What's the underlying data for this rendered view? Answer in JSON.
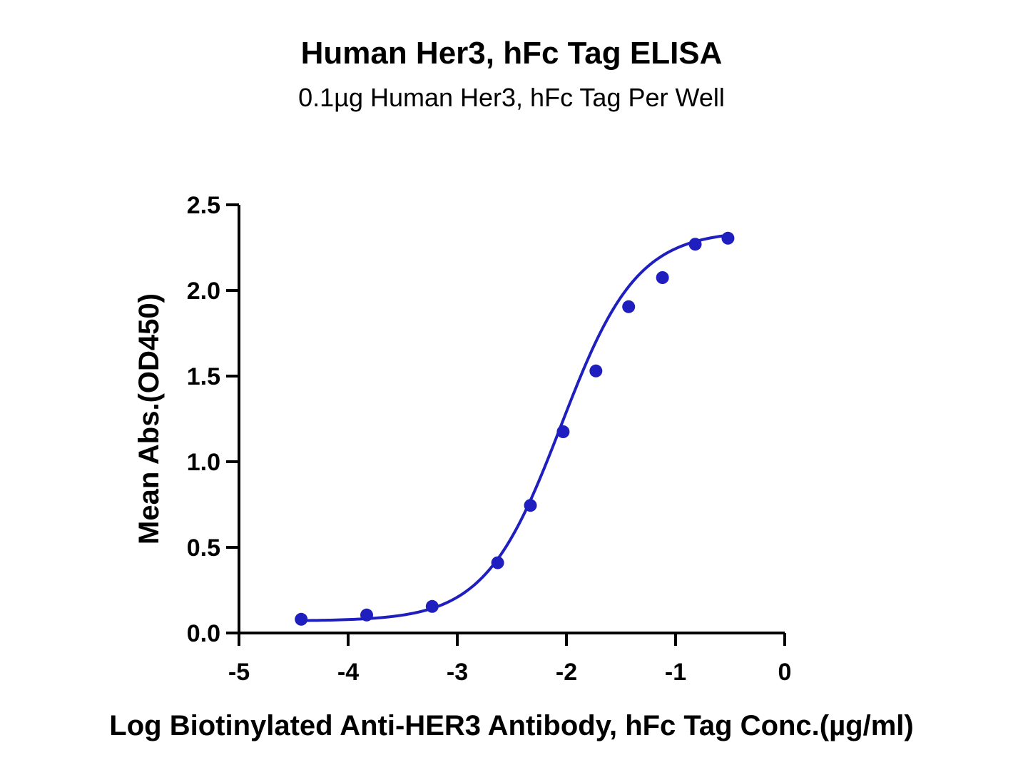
{
  "chart_data": {
    "type": "scatter",
    "title": "Human Her3, hFc Tag ELISA",
    "subtitle": "0.1µg Human Her3, hFc Tag Per Well",
    "xlabel": "Log Biotinylated Anti-HER3 Antibody, hFc Tag Conc.(µg/ml)",
    "ylabel": "Mean Abs.(OD450)",
    "xlim": [
      -5,
      0
    ],
    "ylim": [
      0,
      2.5
    ],
    "x_ticks": [
      -5,
      -4,
      -3,
      -2,
      -1,
      0
    ],
    "x_tick_labels": [
      "-5",
      "-4",
      "-3",
      "-2",
      "-1",
      "0"
    ],
    "y_ticks": [
      0,
      0.5,
      1,
      1.5,
      2,
      2.5
    ],
    "y_tick_labels": [
      "0.0",
      "0.5",
      "1.0",
      "1.5",
      "2.0",
      "2.5"
    ],
    "grid": false,
    "color": "#1f1fbf",
    "series": [
      {
        "x": [
          -4.43,
          -3.83,
          -3.23,
          -2.63,
          -2.33,
          -2.03,
          -1.73,
          -1.43,
          -1.12,
          -0.82,
          -0.52
        ],
        "y": [
          0.08,
          0.105,
          0.155,
          0.41,
          0.745,
          1.175,
          1.53,
          1.905,
          2.075,
          2.27,
          2.305
        ]
      }
    ],
    "fit": {
      "type": "4PL",
      "bottom": 0.07,
      "top": 2.35,
      "logEC50": -2.05,
      "hill": 1.25
    }
  }
}
